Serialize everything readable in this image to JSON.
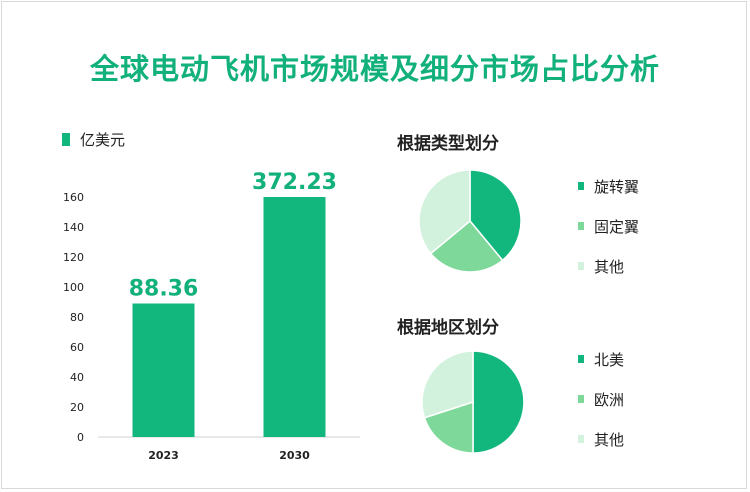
{
  "page_title": "全球电动飞机市场规模及细分市场占比分析",
  "chart_data": [
    {
      "type": "bar",
      "legend": "亿美元",
      "categories": [
        "2023",
        "2030"
      ],
      "values": [
        88.36,
        372.23
      ],
      "data_labels": [
        "88.36",
        "372.23"
      ],
      "bar_heights_axis_values": [
        89,
        160
      ],
      "yticks": [
        "0",
        "20",
        "40",
        "60",
        "80",
        "100",
        "120",
        "140",
        "160"
      ],
      "ylim": [
        0,
        160
      ],
      "color": "#12b77e",
      "label_color": "#12b07a"
    },
    {
      "type": "pie",
      "title": "根据类型划分",
      "labels": [
        "旋转翼",
        "固定翼",
        "其他"
      ],
      "values": [
        39,
        25,
        36
      ],
      "colors": [
        "#12b77e",
        "#7dd89a",
        "#d3f2de"
      ]
    },
    {
      "type": "pie",
      "title": "根据地区划分",
      "labels": [
        "北美",
        "欧洲",
        "其他"
      ],
      "values": [
        50,
        20,
        30
      ],
      "colors": [
        "#12b77e",
        "#7dd89a",
        "#d3f2de"
      ]
    }
  ]
}
